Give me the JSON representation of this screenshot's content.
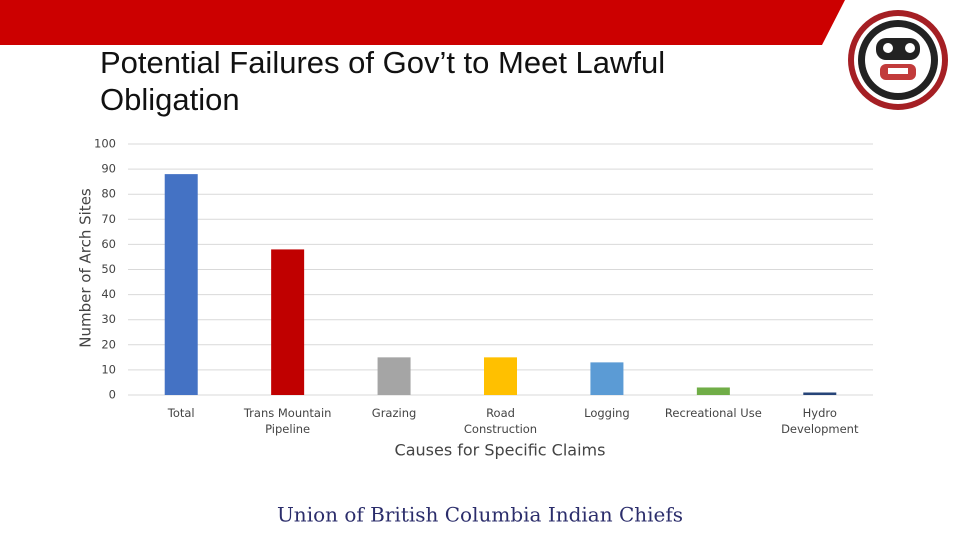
{
  "chart_data": {
    "type": "bar",
    "title": "Potential Failures of Gov’t to Meet Lawful Obligation",
    "x_label": "Causes for Specific Claims",
    "y_label": "Number of Arch Sites",
    "categories": [
      "Total",
      "Trans Mountain Pipeline",
      "Grazing",
      "Road Construction",
      "Logging",
      "Recreational Use",
      "Hydro Development"
    ],
    "values": [
      88,
      58,
      15,
      15,
      13,
      3,
      1
    ],
    "colors": [
      "#4472c4",
      "#c00000",
      "#a5a5a5",
      "#ffc000",
      "#5b9bd5",
      "#70ad47",
      "#264478"
    ],
    "ylim": [
      0,
      100
    ],
    "yticks": [
      0,
      10,
      20,
      30,
      40,
      50,
      60,
      70,
      80,
      90,
      100
    ],
    "grid": true
  },
  "footer": "Union of British Columbia Indian Chiefs"
}
